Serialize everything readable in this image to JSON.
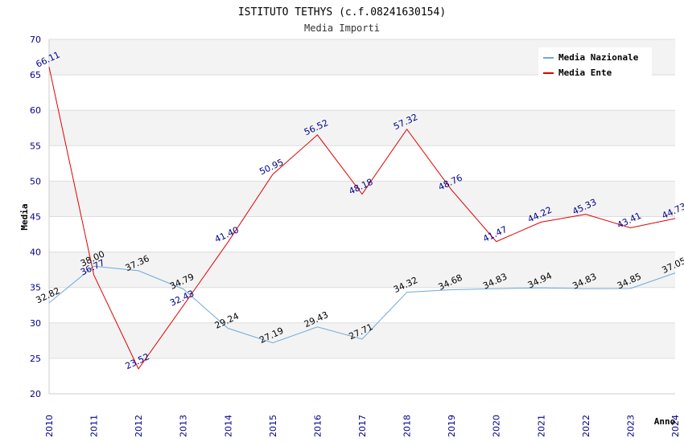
{
  "chart_data": {
    "type": "line",
    "title": "ISTITUTO TETHYS (c.f.08241630154)",
    "subtitle": "Media Importi",
    "xlabel": "Anno",
    "ylabel": "Media",
    "ylim": [
      20,
      70
    ],
    "yticks": [
      "20",
      "25",
      "30",
      "35",
      "40",
      "45",
      "50",
      "55",
      "60",
      "65",
      "70"
    ],
    "categories": [
      "2010",
      "2011",
      "2012",
      "2013",
      "2014",
      "2015",
      "2016",
      "2017",
      "2018",
      "2019",
      "2020",
      "2021",
      "2022",
      "2023",
      "2024"
    ],
    "legend_position": "top-right",
    "grid": true,
    "series": [
      {
        "name": "Media Nazionale",
        "color": "#6fa8dc",
        "label_color": "#000000",
        "values": [
          32.82,
          38.0,
          37.36,
          34.79,
          29.24,
          27.19,
          29.43,
          27.71,
          34.32,
          34.68,
          34.83,
          34.94,
          34.83,
          34.85,
          37.05
        ],
        "labels": [
          "32.82",
          "38.00",
          "37.36",
          "34.79",
          "29.24",
          "27.19",
          "29.43",
          "27.71",
          "34.32",
          "34.68",
          "34.83",
          "34.94",
          "34.83",
          "34.85",
          "37.05"
        ]
      },
      {
        "name": "Media Ente",
        "color": "#e00000",
        "label_color": "#00008b",
        "values": [
          66.11,
          36.77,
          23.52,
          32.43,
          41.4,
          50.95,
          56.52,
          48.18,
          57.32,
          48.76,
          41.47,
          44.22,
          45.33,
          43.41,
          44.73
        ],
        "labels": [
          "66.11",
          "36.77",
          "23.52",
          "32.43",
          "41.40",
          "50.95",
          "56.52",
          "48.18",
          "57.32",
          "48.76",
          "41.47",
          "44.22",
          "45.33",
          "43.41",
          "44.73"
        ]
      }
    ]
  }
}
